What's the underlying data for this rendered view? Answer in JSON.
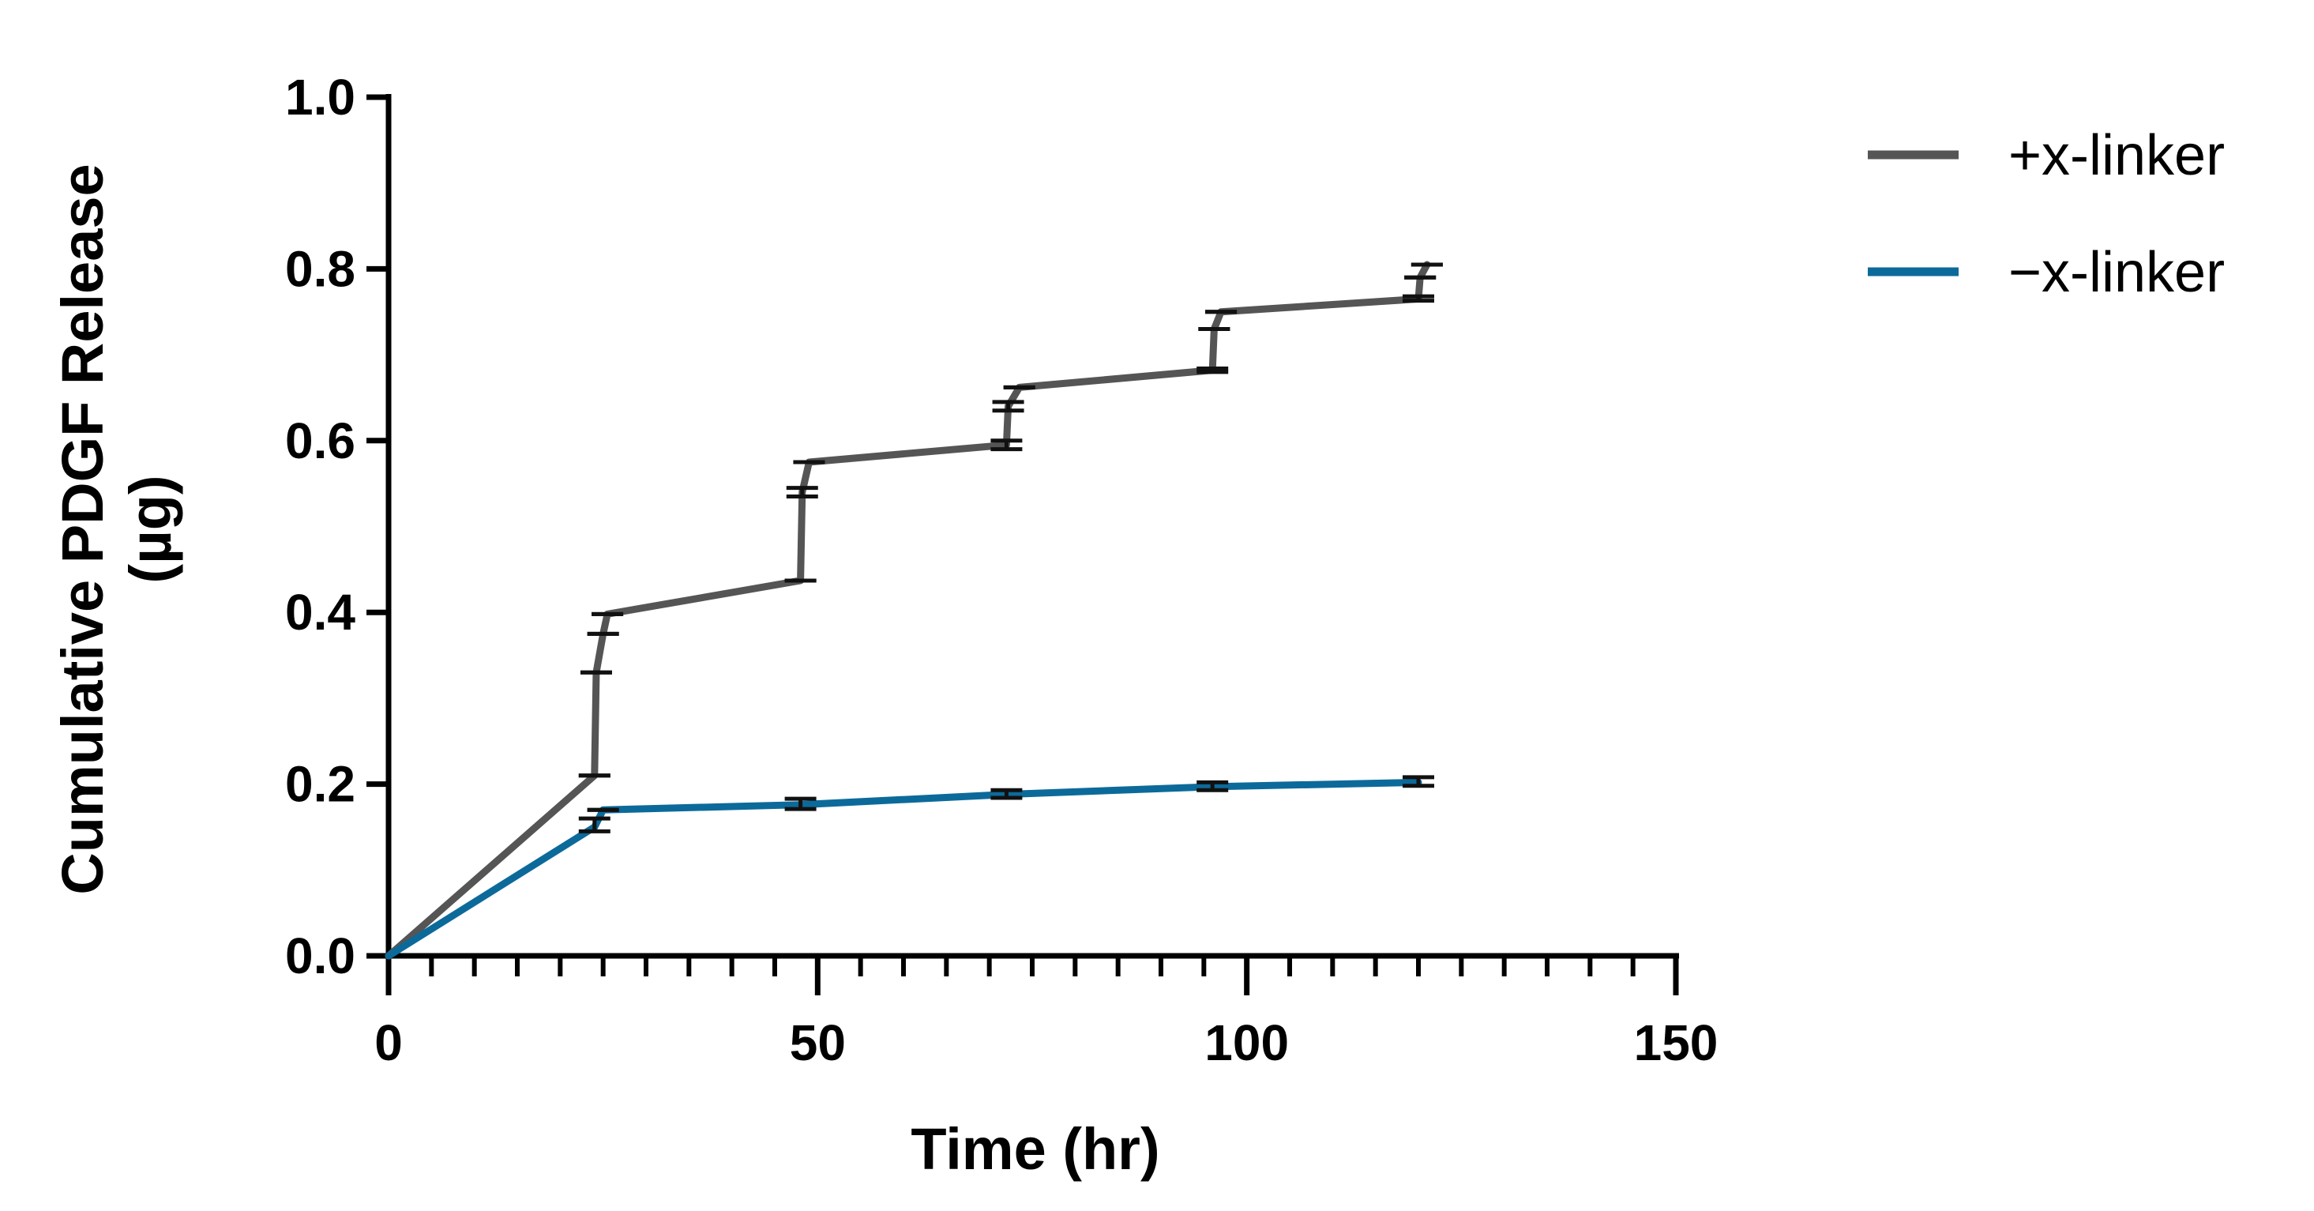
{
  "chart_data": {
    "type": "line",
    "title": "",
    "xlabel": "Time (hr)",
    "ylabel_lines": [
      "Cumulative PDGF Release",
      "(µg)"
    ],
    "xlim": [
      0,
      150
    ],
    "ylim": [
      0,
      1.0
    ],
    "x_ticks": [
      0,
      50,
      100,
      150
    ],
    "x_tick_labels": [
      "0",
      "50",
      "100",
      "150"
    ],
    "x_minor_step": 5,
    "y_ticks": [
      0,
      0.2,
      0.4,
      0.6,
      0.8,
      1.0
    ],
    "y_tick_labels": [
      "0.0",
      "0.2",
      "0.4",
      "0.6",
      "0.8",
      "1.0"
    ],
    "grid": false,
    "legend_position": "top-right",
    "series": [
      {
        "name": "+x-linker",
        "color": "#555555",
        "points": [
          {
            "x": 0,
            "y": 0,
            "lo": 0,
            "hi": 0
          },
          {
            "x": 24,
            "y": 0.21,
            "lo": 0.21,
            "hi": 0.21
          },
          {
            "x": 24.2,
            "y": 0.33,
            "lo": 0.33,
            "hi": 0.33
          },
          {
            "x": 25,
            "y": 0.375,
            "lo": 0.375,
            "hi": 0.375
          },
          {
            "x": 25.5,
            "y": 0.398,
            "lo": 0.398,
            "hi": 0.398
          },
          {
            "x": 48,
            "y": 0.437,
            "lo": 0.437,
            "hi": 0.437
          },
          {
            "x": 48.2,
            "y": 0.54,
            "lo": 0.535,
            "hi": 0.545
          },
          {
            "x": 49,
            "y": 0.575,
            "lo": 0.575,
            "hi": 0.575
          },
          {
            "x": 72,
            "y": 0.595,
            "lo": 0.59,
            "hi": 0.6
          },
          {
            "x": 72.2,
            "y": 0.64,
            "lo": 0.635,
            "hi": 0.645
          },
          {
            "x": 73.5,
            "y": 0.662,
            "lo": 0.662,
            "hi": 0.662
          },
          {
            "x": 96,
            "y": 0.682,
            "lo": 0.68,
            "hi": 0.684
          },
          {
            "x": 96.2,
            "y": 0.73,
            "lo": 0.73,
            "hi": 0.73
          },
          {
            "x": 97,
            "y": 0.75,
            "lo": 0.75,
            "hi": 0.75
          },
          {
            "x": 120,
            "y": 0.765,
            "lo": 0.763,
            "hi": 0.768
          },
          {
            "x": 120.2,
            "y": 0.79,
            "lo": 0.79,
            "hi": 0.79
          },
          {
            "x": 121,
            "y": 0.805,
            "lo": 0.805,
            "hi": 0.805
          }
        ]
      },
      {
        "name": "−x-linker",
        "color": "#0c6a9a",
        "points": [
          {
            "x": 0,
            "y": 0,
            "lo": 0,
            "hi": 0
          },
          {
            "x": 24,
            "y": 0.15,
            "lo": 0.145,
            "hi": 0.16
          },
          {
            "x": 25,
            "y": 0.17,
            "lo": 0.17,
            "hi": 0.17
          },
          {
            "x": 48,
            "y": 0.176,
            "lo": 0.171,
            "hi": 0.183
          },
          {
            "x": 72,
            "y": 0.188,
            "lo": 0.184,
            "hi": 0.193
          },
          {
            "x": 96,
            "y": 0.197,
            "lo": 0.193,
            "hi": 0.202
          },
          {
            "x": 120,
            "y": 0.202,
            "lo": 0.198,
            "hi": 0.208
          }
        ]
      }
    ]
  }
}
